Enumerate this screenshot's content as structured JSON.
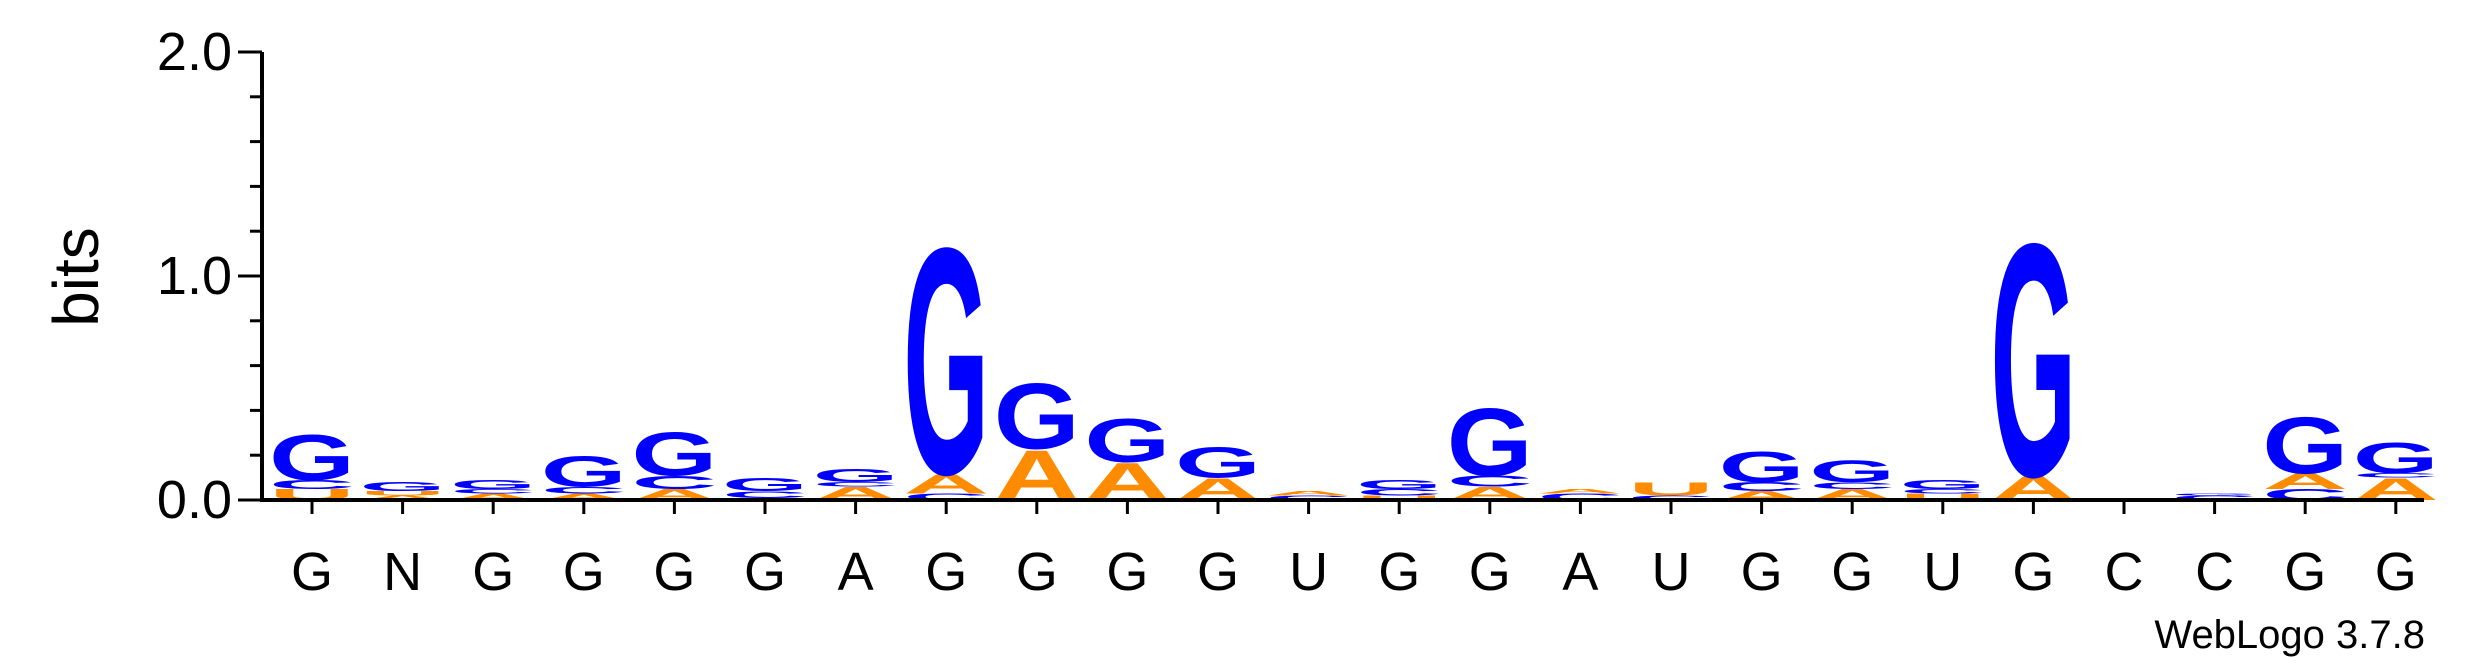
{
  "chart_data": {
    "type": "sequence-logo",
    "ylabel": "bits",
    "ylim": [
      0,
      2.0
    ],
    "yticks": [
      "0.0",
      "1.0",
      "2.0"
    ],
    "credit": "WebLogo 3.7.8",
    "colors": {
      "G": "#0000ff",
      "A": "#ff8c00",
      "U": "#ff8c00",
      "C": "#0000ff",
      "axis": "#000000"
    },
    "categories": [
      "G",
      "N",
      "G",
      "G",
      "G",
      "G",
      "A",
      "G",
      "G",
      "G",
      "G",
      "U",
      "G",
      "G",
      "A",
      "U",
      "G",
      "G",
      "U",
      "G",
      "C",
      "C",
      "G",
      "G"
    ],
    "positions": [
      {
        "consensus": "G",
        "stack": [
          {
            "letter": "U",
            "bits": 0.05
          },
          {
            "letter": "C",
            "bits": 0.04
          },
          {
            "letter": "G",
            "bits": 0.21
          }
        ]
      },
      {
        "consensus": "N",
        "stack": [
          {
            "letter": "A",
            "bits": 0.02
          },
          {
            "letter": "U",
            "bits": 0.02
          },
          {
            "letter": "G",
            "bits": 0.04
          }
        ]
      },
      {
        "consensus": "G",
        "stack": [
          {
            "letter": "A",
            "bits": 0.03
          },
          {
            "letter": "C",
            "bits": 0.02
          },
          {
            "letter": "G",
            "bits": 0.04
          }
        ]
      },
      {
        "consensus": "G",
        "stack": [
          {
            "letter": "A",
            "bits": 0.03
          },
          {
            "letter": "C",
            "bits": 0.03
          },
          {
            "letter": "G",
            "bits": 0.14
          }
        ]
      },
      {
        "consensus": "G",
        "stack": [
          {
            "letter": "A",
            "bits": 0.05
          },
          {
            "letter": "C",
            "bits": 0.06
          },
          {
            "letter": "G",
            "bits": 0.2
          }
        ]
      },
      {
        "consensus": "G",
        "stack": [
          {
            "letter": "U",
            "bits": 0.01
          },
          {
            "letter": "C",
            "bits": 0.03
          },
          {
            "letter": "G",
            "bits": 0.06
          }
        ]
      },
      {
        "consensus": "A",
        "stack": [
          {
            "letter": "A",
            "bits": 0.06
          },
          {
            "letter": "C",
            "bits": 0.02
          },
          {
            "letter": "G",
            "bits": 0.06
          }
        ]
      },
      {
        "consensus": "G",
        "stack": [
          {
            "letter": "C",
            "bits": 0.03
          },
          {
            "letter": "A",
            "bits": 0.09
          },
          {
            "letter": "G",
            "bits": 1.04
          }
        ]
      },
      {
        "consensus": "G",
        "stack": [
          {
            "letter": "A",
            "bits": 0.23
          },
          {
            "letter": "G",
            "bits": 0.3
          }
        ]
      },
      {
        "consensus": "G",
        "stack": [
          {
            "letter": "A",
            "bits": 0.17
          },
          {
            "letter": "G",
            "bits": 0.2
          }
        ]
      },
      {
        "consensus": "G",
        "stack": [
          {
            "letter": "A",
            "bits": 0.1
          },
          {
            "letter": "G",
            "bits": 0.14
          }
        ]
      },
      {
        "consensus": "U",
        "stack": [
          {
            "letter": "C",
            "bits": 0.02
          },
          {
            "letter": "A",
            "bits": 0.02
          }
        ]
      },
      {
        "consensus": "G",
        "stack": [
          {
            "letter": "U",
            "bits": 0.02
          },
          {
            "letter": "C",
            "bits": 0.03
          },
          {
            "letter": "G",
            "bits": 0.04
          }
        ]
      },
      {
        "consensus": "G",
        "stack": [
          {
            "letter": "A",
            "bits": 0.06
          },
          {
            "letter": "C",
            "bits": 0.05
          },
          {
            "letter": "G",
            "bits": 0.31
          }
        ]
      },
      {
        "consensus": "A",
        "stack": [
          {
            "letter": "C",
            "bits": 0.03
          },
          {
            "letter": "A",
            "bits": 0.02
          }
        ]
      },
      {
        "consensus": "U",
        "stack": [
          {
            "letter": "C",
            "bits": 0.02
          },
          {
            "letter": "U",
            "bits": 0.06
          }
        ]
      },
      {
        "consensus": "G",
        "stack": [
          {
            "letter": "A",
            "bits": 0.04
          },
          {
            "letter": "C",
            "bits": 0.04
          },
          {
            "letter": "G",
            "bits": 0.14
          }
        ]
      },
      {
        "consensus": "G",
        "stack": [
          {
            "letter": "A",
            "bits": 0.05
          },
          {
            "letter": "C",
            "bits": 0.03
          },
          {
            "letter": "G",
            "bits": 0.1
          }
        ]
      },
      {
        "consensus": "U",
        "stack": [
          {
            "letter": "U",
            "bits": 0.03
          },
          {
            "letter": "C",
            "bits": 0.02
          },
          {
            "letter": "G",
            "bits": 0.04
          }
        ]
      },
      {
        "consensus": "G",
        "stack": [
          {
            "letter": "A",
            "bits": 0.11
          },
          {
            "letter": "G",
            "bits": 1.07
          }
        ]
      },
      {
        "consensus": "C",
        "stack": [
          {
            "letter": "A",
            "bits": 0.01
          }
        ]
      },
      {
        "consensus": "C",
        "stack": [
          {
            "letter": "C",
            "bits": 0.02
          },
          {
            "letter": "G",
            "bits": 0.01
          }
        ]
      },
      {
        "consensus": "G",
        "stack": [
          {
            "letter": "C",
            "bits": 0.05
          },
          {
            "letter": "A",
            "bits": 0.07
          },
          {
            "letter": "G",
            "bits": 0.26
          }
        ]
      },
      {
        "consensus": "G",
        "stack": [
          {
            "letter": "A",
            "bits": 0.1
          },
          {
            "letter": "C",
            "bits": 0.02
          },
          {
            "letter": "G",
            "bits": 0.14
          }
        ]
      }
    ]
  }
}
